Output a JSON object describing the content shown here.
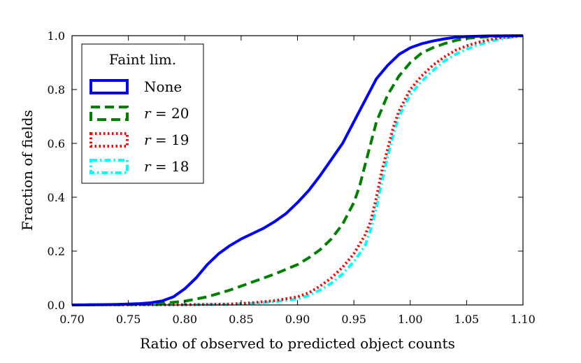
{
  "chart_data": {
    "type": "line",
    "title": "",
    "xlabel": "Ratio of observed to predicted object counts",
    "ylabel": "Fraction of fields",
    "xlim": [
      0.7,
      1.1
    ],
    "ylim": [
      0.0,
      1.0
    ],
    "xticks": [
      0.7,
      0.75,
      0.8,
      0.85,
      0.9,
      0.95,
      1.0,
      1.05,
      1.1
    ],
    "xtick_labels": [
      "0.70",
      "0.75",
      "0.80",
      "0.85",
      "0.90",
      "0.95",
      "1.00",
      "1.05",
      "1.10"
    ],
    "yticks": [
      0.0,
      0.2,
      0.4,
      0.6,
      0.8,
      1.0
    ],
    "ytick_labels": [
      "0.0",
      "0.2",
      "0.4",
      "0.6",
      "0.8",
      "1.0"
    ],
    "grid": false,
    "legend": {
      "title": "Faint lim.",
      "placement": "top-left",
      "entries": [
        {
          "label_var": "",
          "label_text": "None"
        },
        {
          "label_var": "r",
          "label_text": " = 20"
        },
        {
          "label_var": "r",
          "label_text": " = 19"
        },
        {
          "label_var": "r",
          "label_text": " = 18"
        }
      ]
    },
    "series": [
      {
        "name": "None",
        "color": "#0000ff",
        "linestyle": "solid",
        "x": [
          0.7,
          0.74,
          0.76,
          0.77,
          0.78,
          0.79,
          0.8,
          0.81,
          0.82,
          0.83,
          0.84,
          0.85,
          0.86,
          0.87,
          0.88,
          0.89,
          0.9,
          0.91,
          0.92,
          0.93,
          0.94,
          0.95,
          0.96,
          0.97,
          0.98,
          0.99,
          1.0,
          1.01,
          1.02,
          1.03,
          1.04,
          1.05,
          1.07,
          1.1
        ],
        "y": [
          0.0,
          0.002,
          0.005,
          0.008,
          0.015,
          0.03,
          0.06,
          0.1,
          0.15,
          0.19,
          0.22,
          0.245,
          0.265,
          0.285,
          0.31,
          0.34,
          0.38,
          0.425,
          0.48,
          0.54,
          0.6,
          0.68,
          0.76,
          0.84,
          0.89,
          0.93,
          0.955,
          0.97,
          0.98,
          0.988,
          0.994,
          0.997,
          0.999,
          1.0
        ]
      },
      {
        "name": "r = 20",
        "color": "#008000",
        "linestyle": "dashed",
        "x": [
          0.7,
          0.76,
          0.78,
          0.8,
          0.82,
          0.84,
          0.86,
          0.88,
          0.9,
          0.91,
          0.92,
          0.93,
          0.94,
          0.95,
          0.955,
          0.96,
          0.965,
          0.97,
          0.98,
          0.99,
          1.0,
          1.01,
          1.02,
          1.03,
          1.04,
          1.05,
          1.07,
          1.1
        ],
        "y": [
          0.0,
          0.002,
          0.006,
          0.014,
          0.03,
          0.055,
          0.085,
          0.115,
          0.15,
          0.175,
          0.205,
          0.245,
          0.3,
          0.38,
          0.44,
          0.52,
          0.6,
          0.68,
          0.78,
          0.85,
          0.9,
          0.935,
          0.955,
          0.97,
          0.982,
          0.99,
          0.997,
          1.0
        ]
      },
      {
        "name": "r = 19",
        "color": "#ff0000",
        "linestyle": "dotted",
        "x": [
          0.7,
          0.8,
          0.84,
          0.86,
          0.88,
          0.9,
          0.91,
          0.92,
          0.93,
          0.94,
          0.95,
          0.96,
          0.965,
          0.97,
          0.975,
          0.98,
          0.985,
          0.99,
          1.0,
          1.01,
          1.02,
          1.03,
          1.04,
          1.05,
          1.06,
          1.07,
          1.08,
          1.1
        ],
        "y": [
          0.0,
          0.001,
          0.003,
          0.008,
          0.016,
          0.03,
          0.045,
          0.07,
          0.1,
          0.14,
          0.19,
          0.26,
          0.31,
          0.4,
          0.5,
          0.58,
          0.66,
          0.72,
          0.8,
          0.85,
          0.89,
          0.92,
          0.945,
          0.962,
          0.975,
          0.985,
          0.992,
          1.0
        ]
      },
      {
        "name": "r = 18",
        "color": "#00ffff",
        "linestyle": "dashdot",
        "x": [
          0.7,
          0.8,
          0.84,
          0.86,
          0.88,
          0.9,
          0.91,
          0.92,
          0.93,
          0.94,
          0.95,
          0.96,
          0.965,
          0.97,
          0.975,
          0.98,
          0.985,
          0.99,
          1.0,
          1.01,
          1.02,
          1.03,
          1.04,
          1.05,
          1.06,
          1.07,
          1.08,
          1.1
        ],
        "y": [
          0.0,
          0.001,
          0.002,
          0.006,
          0.012,
          0.022,
          0.035,
          0.055,
          0.08,
          0.115,
          0.16,
          0.22,
          0.28,
          0.36,
          0.46,
          0.55,
          0.63,
          0.7,
          0.78,
          0.83,
          0.87,
          0.905,
          0.93,
          0.95,
          0.965,
          0.978,
          0.988,
          1.0
        ]
      }
    ]
  }
}
